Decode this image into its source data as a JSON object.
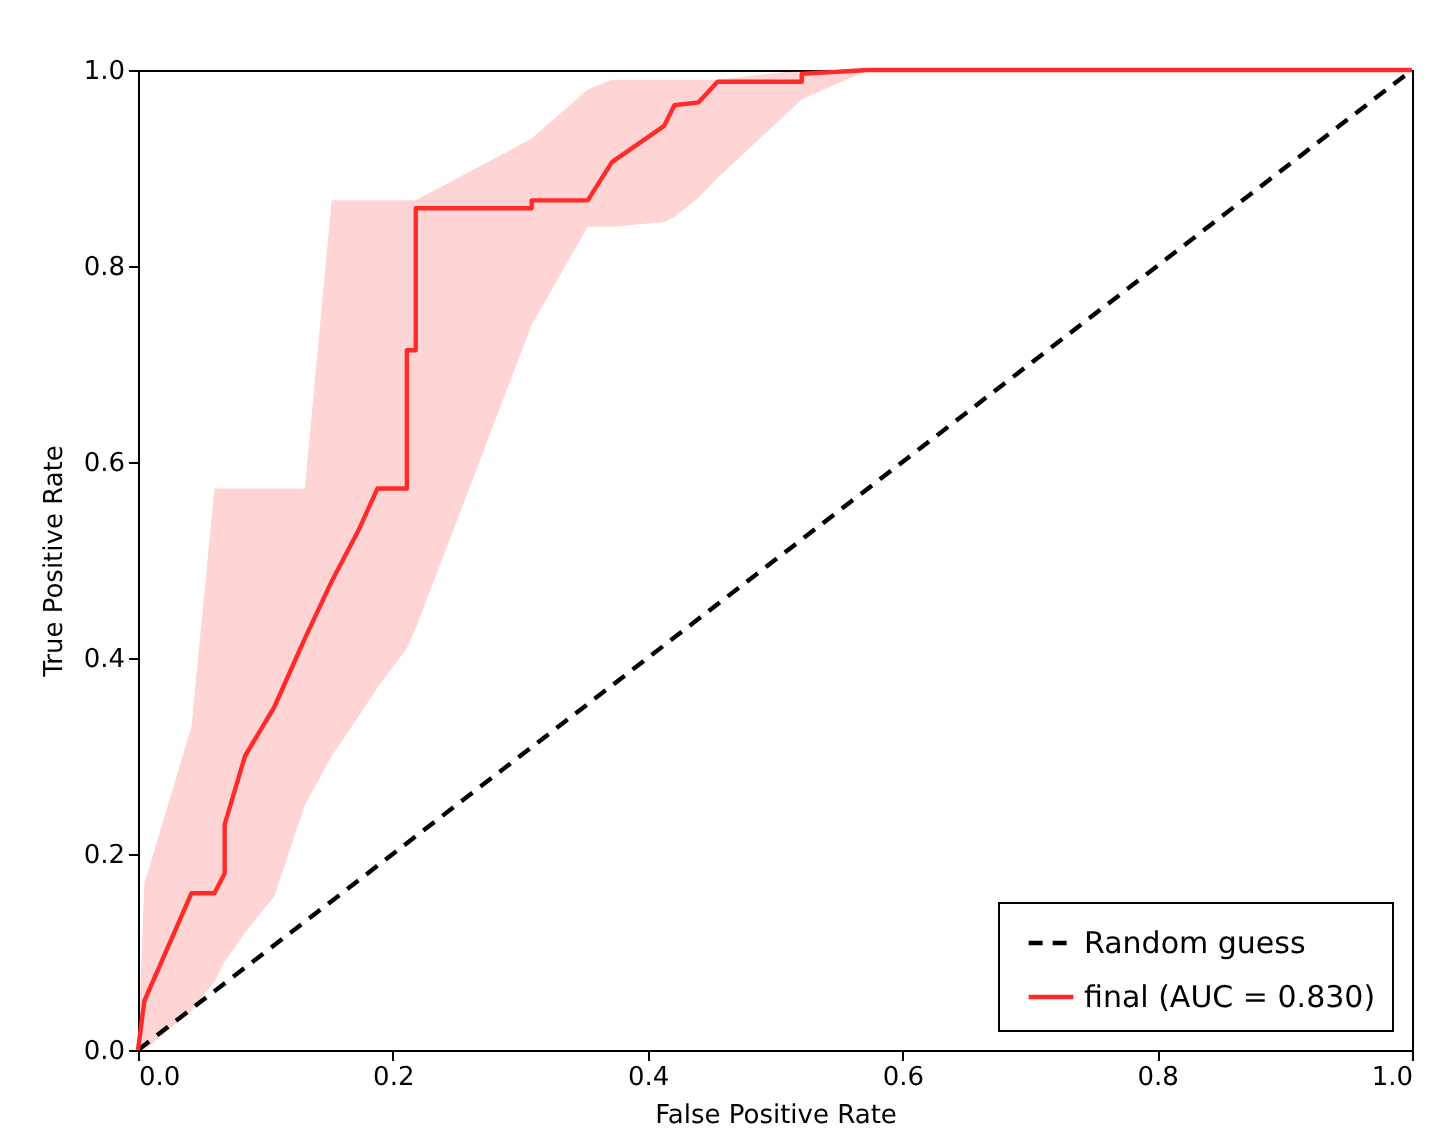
{
  "chart_data": {
    "type": "line",
    "xlabel": "False Positive Rate",
    "ylabel": "True Positive Rate",
    "xlim": [
      0,
      1
    ],
    "ylim": [
      0,
      1
    ],
    "xticks": [
      {
        "value": 0,
        "label": "0.0"
      },
      {
        "value": 0.2,
        "label": "0.2"
      },
      {
        "value": 0.4,
        "label": "0.4"
      },
      {
        "value": 0.6,
        "label": "0.6"
      },
      {
        "value": 0.8,
        "label": "0.8"
      },
      {
        "value": 1,
        "label": "1.0"
      }
    ],
    "yticks": [
      {
        "value": 0,
        "label": "0.0"
      },
      {
        "value": 0.2,
        "label": "0.2"
      },
      {
        "value": 0.4,
        "label": "0.4"
      },
      {
        "value": 0.6,
        "label": "0.6"
      },
      {
        "value": 0.8,
        "label": "0.8"
      },
      {
        "value": 1,
        "label": "1.0"
      }
    ],
    "grid": false,
    "legend": "bottom right",
    "marker": "none",
    "series": [
      {
        "name": "Random guess",
        "color": "#000000",
        "line_style": "dashed",
        "x": [
          0,
          1
        ],
        "values": [
          0,
          1
        ]
      },
      {
        "name": "final (AUC = 0.830)",
        "color": "#ff2a2a",
        "line_style": "solid",
        "x": [
          0,
          0.005,
          0.042,
          0.06,
          0.068,
          0.068,
          0.084,
          0.107,
          0.131,
          0.152,
          0.173,
          0.188,
          0.211,
          0.211,
          0.218,
          0.218,
          0.309,
          0.309,
          0.353,
          0.372,
          0.413,
          0.421,
          0.44,
          0.455,
          0.521,
          0.521,
          0.573,
          1
        ],
        "values": [
          0,
          0.05,
          0.16,
          0.16,
          0.18,
          0.23,
          0.3,
          0.35,
          0.42,
          0.478,
          0.53,
          0.573,
          0.573,
          0.714,
          0.714,
          0.859,
          0.859,
          0.867,
          0.867,
          0.906,
          0.943,
          0.964,
          0.967,
          0.988,
          0.988,
          0.996,
          1,
          1
        ],
        "lower": [
          0,
          0,
          0.04,
          0.07,
          0.09,
          0.09,
          0.12,
          0.157,
          0.25,
          0.3,
          0.34,
          0.37,
          0.41,
          0.41,
          0.43,
          0.43,
          0.74,
          0.74,
          0.84,
          0.84,
          0.845,
          0.85,
          0.87,
          0.89,
          0.97,
          0.97,
          1,
          1
        ],
        "upper": [
          0,
          0.17,
          0.33,
          0.573,
          0.573,
          0.573,
          0.573,
          0.573,
          0.573,
          0.867,
          0.867,
          0.867,
          0.867,
          0.867,
          0.867,
          0.867,
          0.93,
          0.93,
          0.98,
          0.99,
          0.99,
          0.99,
          0.99,
          0.99,
          1,
          1,
          1,
          1
        ]
      }
    ]
  }
}
